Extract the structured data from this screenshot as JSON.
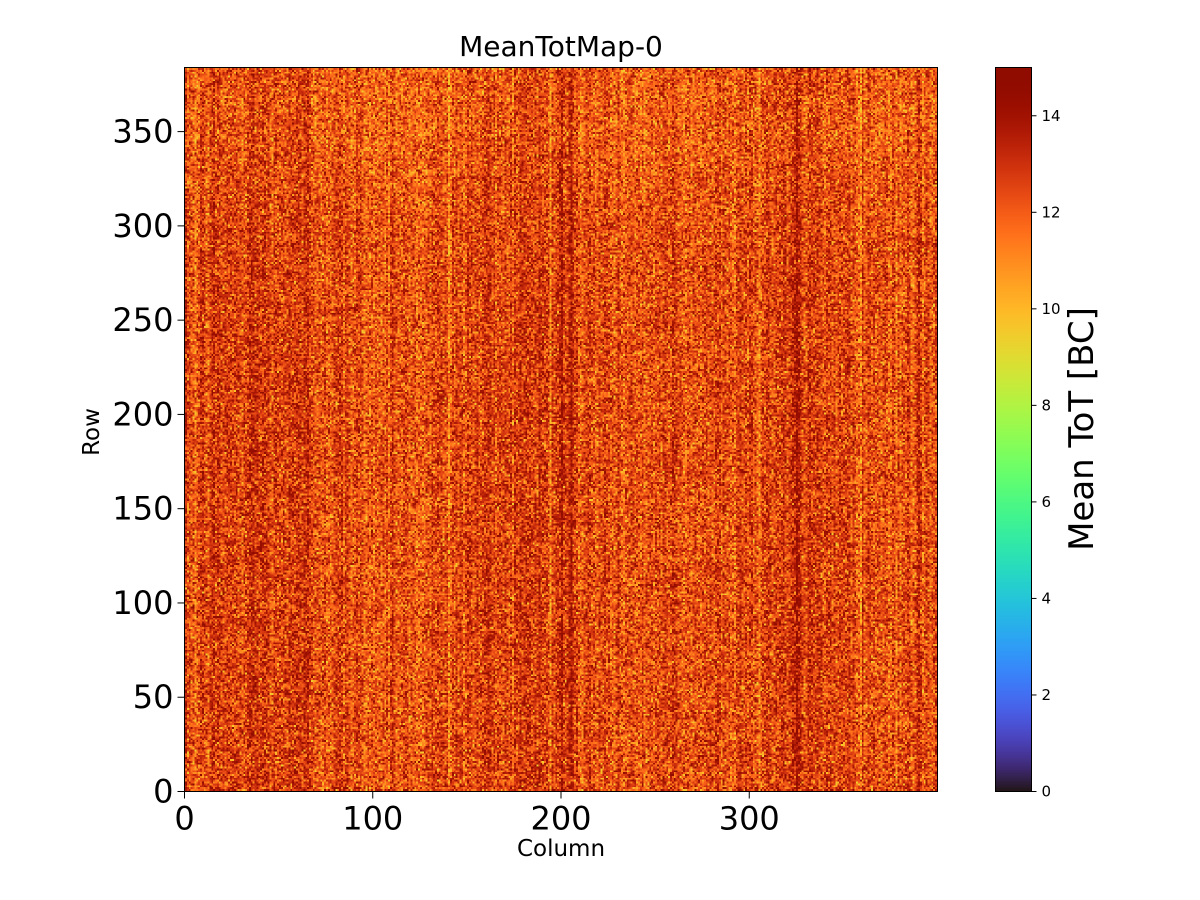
{
  "chart_data": {
    "type": "heatmap",
    "title": "MeanTotMap-0",
    "xlabel": "Column",
    "ylabel": "Row",
    "colorbar_label": "Mean ToT [BC]",
    "xlim": [
      0,
      400
    ],
    "ylim": [
      0,
      384
    ],
    "x_ticks": [
      0,
      100,
      200,
      300
    ],
    "y_ticks": [
      0,
      50,
      100,
      150,
      200,
      250,
      300,
      350
    ],
    "colorbar_range": [
      0,
      15
    ],
    "colorbar_ticks": [
      0,
      2,
      4,
      6,
      8,
      10,
      12,
      14
    ],
    "colormap": "turbo",
    "grid": false,
    "value_summary": {
      "typical_value": 12.5,
      "typical_range": [
        10,
        15
      ],
      "description": "Mostly uniform map with values around 12-13 BC; darker vertical stripes near columns 35, 65, 200, 260, 325, 390 and lighter columns near 5, 30, 210"
    },
    "dark_columns": [
      35,
      65,
      110,
      200,
      205,
      260,
      325,
      390
    ],
    "light_columns": [
      5,
      30,
      140,
      210,
      305
    ]
  }
}
